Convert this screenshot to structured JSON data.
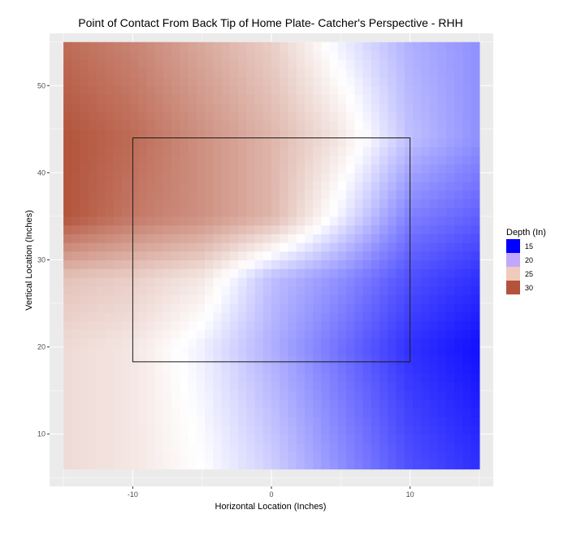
{
  "chart_data": {
    "type": "heatmap",
    "title": "Point of Contact From Back Tip of Home Plate- Catcher's Perspective - RHH",
    "xlabel": "Horizontal Location (Inches)",
    "ylabel": "Vertical Location (Inches)",
    "xlim": [
      -16,
      16
    ],
    "ylim": [
      4,
      56
    ],
    "xticks": [
      -10,
      0,
      10
    ],
    "xtick_labels": [
      "-10",
      "0",
      "10"
    ],
    "yticks": [
      10,
      20,
      30,
      40,
      50
    ],
    "ytick_labels": [
      "10",
      "20",
      "30",
      "40",
      "50"
    ],
    "grid": true,
    "panel_background": "#ebebeb",
    "gridline_color": "#ffffff",
    "heatmap_extent": {
      "x": [
        -15,
        15
      ],
      "y": [
        6,
        55
      ]
    },
    "strike_zone": {
      "x": [
        -10,
        10
      ],
      "y": [
        18.3,
        44
      ]
    },
    "depth_grid": {
      "x": [
        -15,
        -10,
        -5,
        0,
        5,
        10,
        15
      ],
      "y": [
        55,
        44,
        35,
        28,
        20,
        6
      ],
      "values": [
        [
          29,
          28,
          26.5,
          25,
          22.5,
          20.5,
          19.5
        ],
        [
          30,
          29,
          27.5,
          26,
          24,
          21,
          19.5
        ],
        [
          30,
          28.5,
          27.5,
          26,
          22.5,
          19,
          18
        ],
        [
          25.5,
          25,
          24,
          21,
          19.5,
          17.5,
          16.5
        ],
        [
          24.5,
          24,
          22.5,
          20.5,
          18.5,
          16.5,
          15.5
        ],
        [
          24.5,
          24,
          23,
          21.5,
          19.5,
          17.5,
          16.5
        ]
      ]
    },
    "legend": {
      "title": "Depth (In)",
      "placement": "right",
      "entries": [
        {
          "label": "15",
          "value": 15,
          "color": "#0000ff"
        },
        {
          "label": "20",
          "value": 20,
          "color": "#c2a7ff"
        },
        {
          "label": "25",
          "value": 25,
          "color": "#f0cbbb"
        },
        {
          "label": "30",
          "value": 30,
          "color": "#b3533b"
        }
      ]
    },
    "color_scale": {
      "low": "#0000ff",
      "mid_value": 23,
      "mid": "#ffffff",
      "high": "#b3533b",
      "limits": [
        15,
        30
      ]
    }
  }
}
